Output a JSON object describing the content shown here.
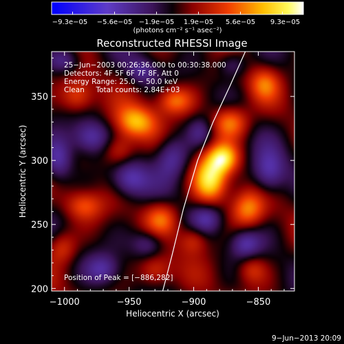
{
  "chart_data": {
    "type": "heatmap",
    "title": "Reconstructed RHESSI Image",
    "xlabel": "Heliocentric X (arcsec)",
    "ylabel": "Heliocentric Y (arcsec)",
    "xlim": [
      -1010,
      -822
    ],
    "ylim": [
      198,
      385
    ],
    "xticks": [
      -1000,
      -950,
      -900,
      -850
    ],
    "yticks": [
      200,
      250,
      300,
      350
    ],
    "xtick_labels": [
      "−1000",
      "−950",
      "−900",
      "−850"
    ],
    "ytick_labels": [
      "200",
      "250",
      "300",
      "350"
    ],
    "colorbar": {
      "min": -9.3e-05,
      "max": 9.3e-05,
      "tick_labels": [
        "−9.3e−05",
        "−5.6e−05",
        "−1.9e−05",
        "1.9e−05",
        "5.6e−05",
        "9.3e−05"
      ],
      "unit_text": "(photons cm⁻² s⁻¹ asec⁻²)"
    },
    "annotations": [
      "25−Jun−2003 00:26:36.000 to 00:30:38.000",
      "Detectors: 4F 5F 6F 7F 8F, Att 0",
      "Energy Range: 25.0 − 50.0 keV",
      "Clean     Total counts: 2.84E+03"
    ],
    "peak_label": "Position of Peak = [−886,282]",
    "peak": [
      -886,
      282
    ],
    "limb_curve": [
      [
        -924,
        198
      ],
      [
        -917,
        225
      ],
      [
        -908,
        262
      ],
      [
        -897,
        300
      ],
      [
        -885,
        330
      ],
      [
        -872,
        358
      ],
      [
        -860,
        385
      ]
    ],
    "sources": [
      {
        "x": -887,
        "y": 285,
        "amp": 1.0,
        "sx": 9,
        "sy": 13
      },
      {
        "x": -877,
        "y": 302,
        "amp": 0.85,
        "sx": 8,
        "sy": 8
      },
      {
        "x": -945,
        "y": 330,
        "amp": 0.8,
        "sx": 11,
        "sy": 9
      },
      {
        "x": -958,
        "y": 308,
        "amp": 0.55,
        "sx": 9,
        "sy": 9
      },
      {
        "x": -915,
        "y": 347,
        "amp": 0.7,
        "sx": 10,
        "sy": 8
      },
      {
        "x": -872,
        "y": 330,
        "amp": 0.75,
        "sx": 10,
        "sy": 9
      },
      {
        "x": -858,
        "y": 262,
        "amp": 0.65,
        "sx": 9,
        "sy": 10
      },
      {
        "x": -925,
        "y": 255,
        "amp": 0.55,
        "sx": 9,
        "sy": 9
      },
      {
        "x": -985,
        "y": 265,
        "amp": 0.5,
        "sx": 10,
        "sy": 8
      },
      {
        "x": -1002,
        "y": 232,
        "amp": 0.45,
        "sx": 8,
        "sy": 9
      },
      {
        "x": -930,
        "y": 213,
        "amp": 0.5,
        "sx": 9,
        "sy": 9
      },
      {
        "x": -900,
        "y": 238,
        "amp": 0.45,
        "sx": 8,
        "sy": 8
      },
      {
        "x": -990,
        "y": 350,
        "amp": 0.55,
        "sx": 9,
        "sy": 9
      },
      {
        "x": -855,
        "y": 215,
        "amp": 0.4,
        "sx": 8,
        "sy": 8
      },
      {
        "x": -845,
        "y": 360,
        "amp": 0.5,
        "sx": 8,
        "sy": 9
      },
      {
        "x": -980,
        "y": 318,
        "amp": -0.55,
        "sx": 10,
        "sy": 9
      },
      {
        "x": -1005,
        "y": 300,
        "amp": -0.6,
        "sx": 8,
        "sy": 12
      },
      {
        "x": -950,
        "y": 285,
        "amp": -0.6,
        "sx": 10,
        "sy": 10
      },
      {
        "x": -917,
        "y": 303,
        "amp": -0.55,
        "sx": 9,
        "sy": 12
      },
      {
        "x": -935,
        "y": 235,
        "amp": -0.5,
        "sx": 9,
        "sy": 8
      },
      {
        "x": -890,
        "y": 255,
        "amp": -0.45,
        "sx": 8,
        "sy": 8
      },
      {
        "x": -842,
        "y": 290,
        "amp": -0.6,
        "sx": 9,
        "sy": 12
      },
      {
        "x": -860,
        "y": 235,
        "amp": -0.5,
        "sx": 8,
        "sy": 8
      },
      {
        "x": -970,
        "y": 215,
        "amp": -0.45,
        "sx": 9,
        "sy": 8
      },
      {
        "x": -1000,
        "y": 378,
        "amp": -0.5,
        "sx": 9,
        "sy": 7
      },
      {
        "x": -940,
        "y": 370,
        "amp": -0.4,
        "sx": 8,
        "sy": 7
      },
      {
        "x": -870,
        "y": 375,
        "amp": -0.45,
        "sx": 8,
        "sy": 7
      },
      {
        "x": -895,
        "y": 322,
        "amp": -0.35,
        "sx": 7,
        "sy": 8
      }
    ]
  },
  "footer": {
    "timestamp": "9−Jun−2013 20:09"
  }
}
